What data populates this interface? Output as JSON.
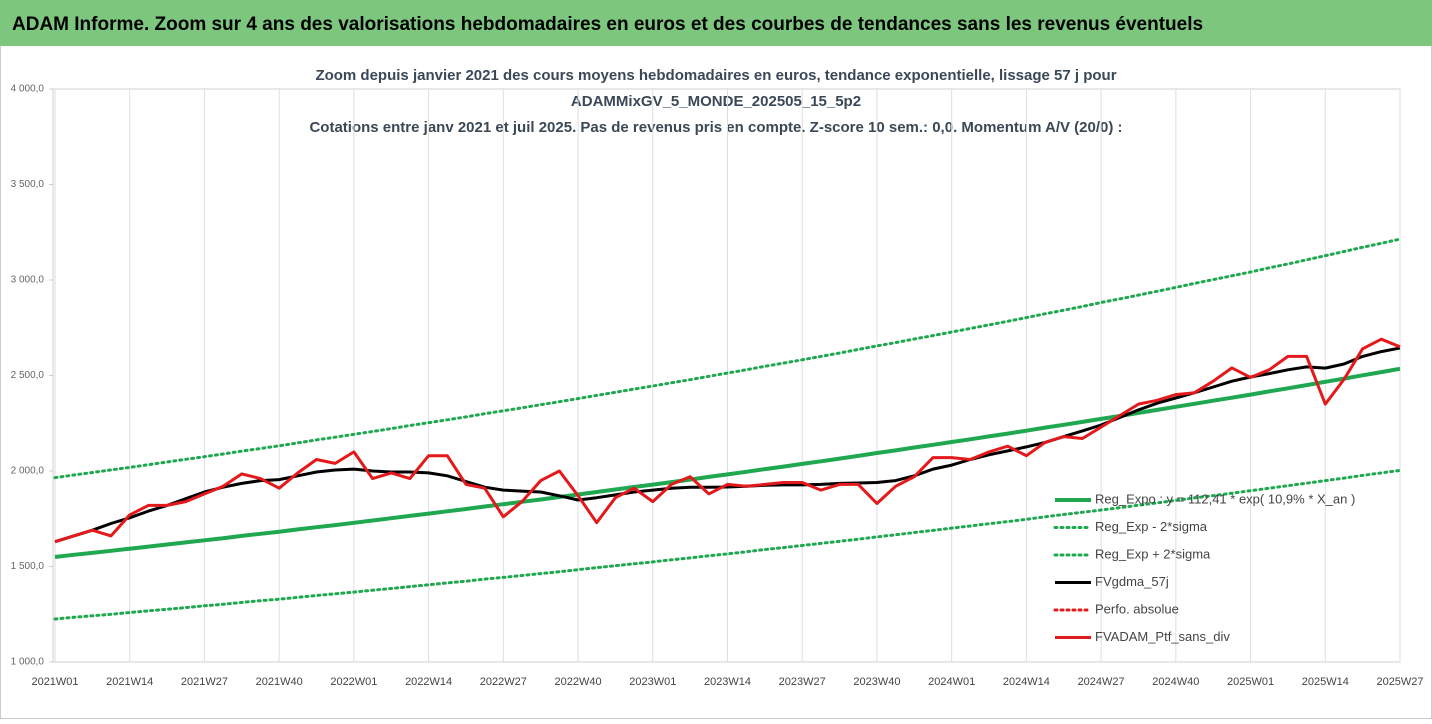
{
  "header": {
    "title": "ADAM Informe. Zoom sur 4 ans des valorisations hebdomadaires en euros et des courbes de tendances sans les revenus éventuels"
  },
  "chart_data": {
    "type": "line",
    "title_lines": [
      "Zoom depuis janvier 2021 des cours moyens hebdomadaires  en euros, tendance exponentielle, lissage 57 j pour",
      "ADAMMixGV_5_MONDE_202505_15_5p2",
      "Cotations entre janv 2021 et juil 2025. Pas de revenus pris en compte. Z-score 10 sem.: 0,0. Momentum A/V (20/0) :"
    ],
    "categories": [
      "2021W01",
      null,
      null,
      null,
      "2021W14",
      null,
      null,
      null,
      "2021W27",
      null,
      null,
      null,
      "2021W40",
      null,
      null,
      null,
      "2022W01",
      null,
      null,
      null,
      "2022W14",
      null,
      null,
      null,
      "2022W27",
      null,
      null,
      null,
      "2022W40",
      null,
      null,
      null,
      "2023W01",
      null,
      null,
      null,
      "2023W14",
      null,
      null,
      null,
      "2023W27",
      null,
      null,
      null,
      "2023W40",
      null,
      null,
      null,
      "2024W01",
      null,
      null,
      null,
      "2024W14",
      null,
      null,
      null,
      "2024W27",
      null,
      null,
      null,
      "2024W40",
      null,
      null,
      null,
      "2025W01",
      null,
      null,
      null,
      "2025W14",
      null,
      null,
      null,
      "2025W27"
    ],
    "ylim": [
      1000,
      4000
    ],
    "yticks": [
      {
        "value": 1000,
        "label": "1 000,0"
      },
      {
        "value": 1500,
        "label": "1 500,0"
      },
      {
        "value": 2000,
        "label": "2 000,0"
      },
      {
        "value": 2500,
        "label": "2 500,0"
      },
      {
        "value": 3000,
        "label": "3 000,0"
      },
      {
        "value": 3500,
        "label": "3 500,0"
      },
      {
        "value": 4000,
        "label": "4 000,0"
      }
    ],
    "xgrid": true,
    "legend": "lower-right",
    "series": [
      {
        "name": "Reg_Expo : y = 112,41 * exp( 10,9% * X_an )",
        "color": "#1fa84f",
        "width": 4,
        "dash": false,
        "values": [
          1550,
          1561,
          1571,
          1582,
          1593,
          1604,
          1615,
          1626,
          1637,
          1648,
          1660,
          1671,
          1682,
          1694,
          1706,
          1717,
          1729,
          1741,
          1753,
          1765,
          1777,
          1789,
          1801,
          1814,
          1826,
          1839,
          1851,
          1864,
          1877,
          1890,
          1903,
          1916,
          1929,
          1942,
          1955,
          1969,
          1982,
          1996,
          2010,
          2023,
          2037,
          2051,
          2065,
          2079,
          2094,
          2108,
          2123,
          2137,
          2152,
          2166,
          2181,
          2196,
          2211,
          2227,
          2242,
          2257,
          2273,
          2288,
          2304,
          2320,
          2336,
          2352,
          2368,
          2384,
          2400,
          2417,
          2433,
          2450,
          2467,
          2484,
          2501,
          2518,
          2535
        ]
      },
      {
        "name": "Reg_Exp - 2*sigma",
        "color": "#1fa84f",
        "width": 3,
        "dash": true,
        "values": [
          1225,
          1234,
          1242,
          1250,
          1259,
          1268,
          1276,
          1285,
          1294,
          1302,
          1312,
          1321,
          1329,
          1339,
          1348,
          1357,
          1366,
          1376,
          1385,
          1395,
          1404,
          1414,
          1423,
          1434,
          1443,
          1453,
          1463,
          1473,
          1483,
          1494,
          1504,
          1514,
          1524,
          1535,
          1545,
          1556,
          1566,
          1577,
          1589,
          1599,
          1610,
          1621,
          1632,
          1643,
          1655,
          1666,
          1678,
          1689,
          1701,
          1712,
          1724,
          1735,
          1747,
          1760,
          1772,
          1784,
          1796,
          1808,
          1821,
          1833,
          1846,
          1859,
          1871,
          1884,
          1897,
          1910,
          1923,
          1936,
          1950,
          1963,
          1977,
          1990,
          2003
        ]
      },
      {
        "name": "Reg_Exp + 2*sigma",
        "color": "#1fa84f",
        "width": 3,
        "dash": true,
        "values": [
          1965,
          1979,
          1992,
          2006,
          2019,
          2033,
          2047,
          2061,
          2075,
          2089,
          2104,
          2118,
          2132,
          2147,
          2163,
          2177,
          2192,
          2207,
          2222,
          2238,
          2253,
          2268,
          2283,
          2300,
          2315,
          2331,
          2347,
          2363,
          2379,
          2396,
          2412,
          2429,
          2445,
          2462,
          2478,
          2496,
          2513,
          2530,
          2548,
          2565,
          2582,
          2600,
          2618,
          2636,
          2655,
          2672,
          2691,
          2709,
          2728,
          2746,
          2765,
          2784,
          2803,
          2823,
          2842,
          2861,
          2882,
          2901,
          2921,
          2941,
          2961,
          2982,
          3002,
          3022,
          3042,
          3064,
          3084,
          3106,
          3127,
          3149,
          3171,
          3192,
          3214
        ]
      },
      {
        "name": "FVgdma_57j",
        "color": "#000000",
        "width": 3,
        "dash": false,
        "values": [
          1630,
          1660,
          1690,
          1725,
          1755,
          1790,
          1820,
          1855,
          1890,
          1915,
          1935,
          1950,
          1955,
          1975,
          1995,
          2005,
          2010,
          2000,
          1995,
          1995,
          1990,
          1975,
          1945,
          1915,
          1900,
          1895,
          1890,
          1870,
          1848,
          1860,
          1875,
          1890,
          1900,
          1910,
          1915,
          1915,
          1916,
          1920,
          1925,
          1927,
          1927,
          1930,
          1935,
          1937,
          1940,
          1950,
          1975,
          2010,
          2031,
          2060,
          2085,
          2105,
          2126,
          2150,
          2180,
          2210,
          2241,
          2280,
          2320,
          2355,
          2382,
          2410,
          2440,
          2470,
          2492,
          2510,
          2530,
          2545,
          2539,
          2560,
          2600,
          2625,
          2644
        ]
      },
      {
        "name": "Perfo. absolue",
        "color": "#e3191b",
        "width": 3,
        "dash": true
      },
      {
        "name": "FVADAM_Ptf_sans_div",
        "color": "#e3191b",
        "width": 3,
        "dash": false,
        "values": [
          1630,
          1660,
          1690,
          1660,
          1770,
          1820,
          1820,
          1840,
          1880,
          1920,
          1985,
          1960,
          1910,
          1990,
          2060,
          2040,
          2100,
          1960,
          1990,
          1960,
          2080,
          2080,
          1930,
          1910,
          1760,
          1840,
          1950,
          2000,
          1870,
          1730,
          1860,
          1910,
          1840,
          1930,
          1970,
          1880,
          1930,
          1920,
          1930,
          1940,
          1940,
          1900,
          1930,
          1930,
          1830,
          1920,
          1970,
          2070,
          2070,
          2060,
          2100,
          2130,
          2080,
          2150,
          2180,
          2170,
          2230,
          2290,
          2350,
          2370,
          2400,
          2410,
          2470,
          2540,
          2490,
          2530,
          2600,
          2600,
          2350,
          2480,
          2640,
          2690,
          2650
        ]
      }
    ]
  }
}
